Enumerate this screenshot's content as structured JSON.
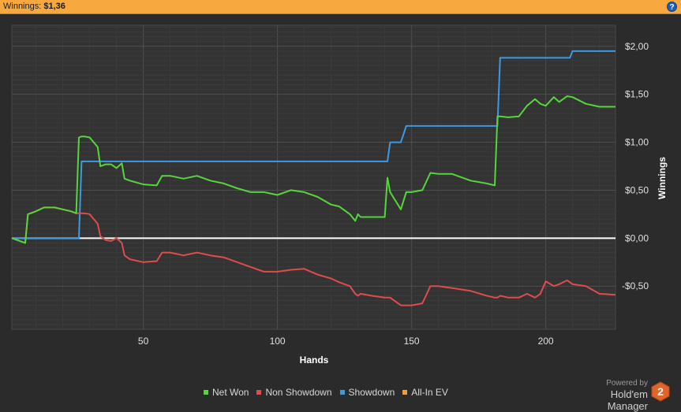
{
  "header": {
    "label": "Winnings:",
    "value": "$1,36",
    "help": "?"
  },
  "powered": {
    "line1": "Powered by",
    "line2": "Hold'em Manager",
    "logo_text": "2"
  },
  "chart_data": {
    "type": "line",
    "xlabel": "Hands",
    "ylabel": "Winnings",
    "xlim": [
      1,
      226
    ],
    "ylim": [
      -0.95,
      2.22
    ],
    "x_ticks": [
      50,
      100,
      150,
      200
    ],
    "x_tick_labels": [
      "50",
      "100",
      "150",
      "200"
    ],
    "y_ticks": [
      2.0,
      1.5,
      1.0,
      0.5,
      0.0,
      -0.5
    ],
    "y_tick_labels": [
      "$2,00",
      "$1,50",
      "$1,00",
      "$0,50",
      "$0,00",
      "-$0,50"
    ],
    "grid": true,
    "legend_position": "bottom",
    "series": [
      {
        "name": "Net Won",
        "color": "#55d63c",
        "x": [
          1,
          6,
          7,
          10,
          13,
          15,
          17,
          20,
          23,
          25,
          26,
          27,
          28,
          30,
          33,
          34,
          36,
          38,
          40,
          42,
          43,
          45,
          50,
          55,
          57,
          60,
          65,
          70,
          75,
          80,
          85,
          90,
          95,
          100,
          105,
          110,
          115,
          120,
          123,
          127,
          129,
          130,
          131,
          135,
          140,
          141,
          142,
          146,
          148,
          150,
          154,
          157,
          160,
          165,
          172,
          178,
          181,
          182,
          183,
          186,
          190,
          193,
          196,
          198,
          200,
          203,
          205,
          208,
          210,
          215,
          220,
          226
        ],
        "y": [
          0.0,
          -0.05,
          0.25,
          0.28,
          0.32,
          0.32,
          0.32,
          0.3,
          0.28,
          0.26,
          1.05,
          1.06,
          1.06,
          1.05,
          0.95,
          0.75,
          0.77,
          0.77,
          0.73,
          0.78,
          0.62,
          0.6,
          0.56,
          0.55,
          0.65,
          0.65,
          0.62,
          0.65,
          0.6,
          0.57,
          0.52,
          0.48,
          0.48,
          0.45,
          0.5,
          0.48,
          0.43,
          0.35,
          0.33,
          0.25,
          0.18,
          0.25,
          0.22,
          0.22,
          0.22,
          0.63,
          0.48,
          0.3,
          0.48,
          0.48,
          0.5,
          0.68,
          0.67,
          0.67,
          0.6,
          0.57,
          0.55,
          1.27,
          1.27,
          1.26,
          1.27,
          1.38,
          1.45,
          1.4,
          1.38,
          1.47,
          1.42,
          1.48,
          1.47,
          1.4,
          1.37,
          1.37
        ]
      },
      {
        "name": "Non Showdown",
        "color": "#e04b4b",
        "x": [
          1,
          6,
          7,
          10,
          13,
          15,
          17,
          20,
          23,
          25,
          26,
          27,
          28,
          30,
          33,
          34,
          36,
          38,
          40,
          42,
          43,
          45,
          50,
          55,
          57,
          60,
          65,
          70,
          75,
          80,
          85,
          90,
          95,
          100,
          105,
          110,
          115,
          120,
          123,
          127,
          129,
          130,
          131,
          135,
          140,
          141,
          142,
          146,
          148,
          150,
          154,
          157,
          160,
          165,
          172,
          178,
          181,
          182,
          183,
          186,
          190,
          193,
          196,
          198,
          200,
          203,
          205,
          208,
          210,
          215,
          220,
          226
        ],
        "y": [
          0.0,
          -0.05,
          0.25,
          0.28,
          0.32,
          0.32,
          0.32,
          0.3,
          0.28,
          0.26,
          0.26,
          0.26,
          0.26,
          0.25,
          0.15,
          0.02,
          -0.02,
          -0.03,
          0.0,
          -0.05,
          -0.18,
          -0.22,
          -0.25,
          -0.24,
          -0.15,
          -0.15,
          -0.18,
          -0.15,
          -0.18,
          -0.2,
          -0.25,
          -0.3,
          -0.35,
          -0.35,
          -0.33,
          -0.32,
          -0.38,
          -0.42,
          -0.46,
          -0.5,
          -0.58,
          -0.6,
          -0.58,
          -0.6,
          -0.62,
          -0.62,
          -0.62,
          -0.7,
          -0.7,
          -0.7,
          -0.68,
          -0.5,
          -0.5,
          -0.52,
          -0.55,
          -0.6,
          -0.62,
          -0.62,
          -0.6,
          -0.62,
          -0.62,
          -0.58,
          -0.62,
          -0.58,
          -0.45,
          -0.5,
          -0.48,
          -0.44,
          -0.48,
          -0.5,
          -0.58,
          -0.59
        ]
      },
      {
        "name": "Showdown",
        "color": "#3c9ae0",
        "x": [
          1,
          26,
          27,
          141,
          142,
          146,
          148,
          150,
          182,
          183,
          209,
          210,
          226
        ],
        "y": [
          0.0,
          0.0,
          0.8,
          0.8,
          1.0,
          1.0,
          1.17,
          1.17,
          1.17,
          1.88,
          1.88,
          1.95,
          1.95
        ]
      },
      {
        "name": "All-In EV",
        "color": "#f39a36",
        "x": [],
        "y": []
      }
    ]
  }
}
